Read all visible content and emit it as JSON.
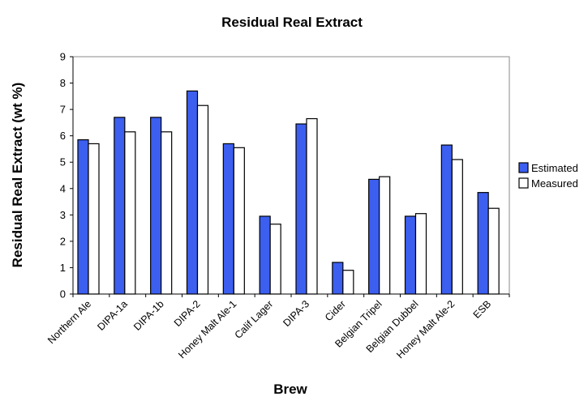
{
  "chart_data": {
    "type": "bar",
    "title": "Residual Real Extract",
    "xlabel": "Brew",
    "ylabel": "Residual Real Extract (wt %)",
    "ylim": [
      0,
      9
    ],
    "yticks": [
      "0",
      "1",
      "2",
      "3",
      "4",
      "5",
      "6",
      "7",
      "8",
      "9"
    ],
    "grid": false,
    "legend": "right",
    "categories": [
      "Northern Ale",
      "DIPA-1a",
      "DIPA-1b",
      "DIPA-2",
      "Honey Malt Ale-1",
      "Calif Lager",
      "DIPA-3",
      "Cider",
      "Belgian Tripel",
      "Belgian Dubbel",
      "Honey Malt Ale-2",
      "ESB"
    ],
    "series": [
      {
        "name": "Estimated",
        "color": "#3c5ff0",
        "values": [
          5.85,
          6.7,
          6.7,
          7.7,
          5.7,
          2.95,
          6.45,
          1.2,
          4.35,
          2.95,
          5.65,
          3.85
        ]
      },
      {
        "name": "Measured",
        "color": "#ffffff",
        "values": [
          5.7,
          6.15,
          6.15,
          7.15,
          5.55,
          2.65,
          6.65,
          0.9,
          4.45,
          3.05,
          5.1,
          3.25
        ]
      }
    ]
  }
}
